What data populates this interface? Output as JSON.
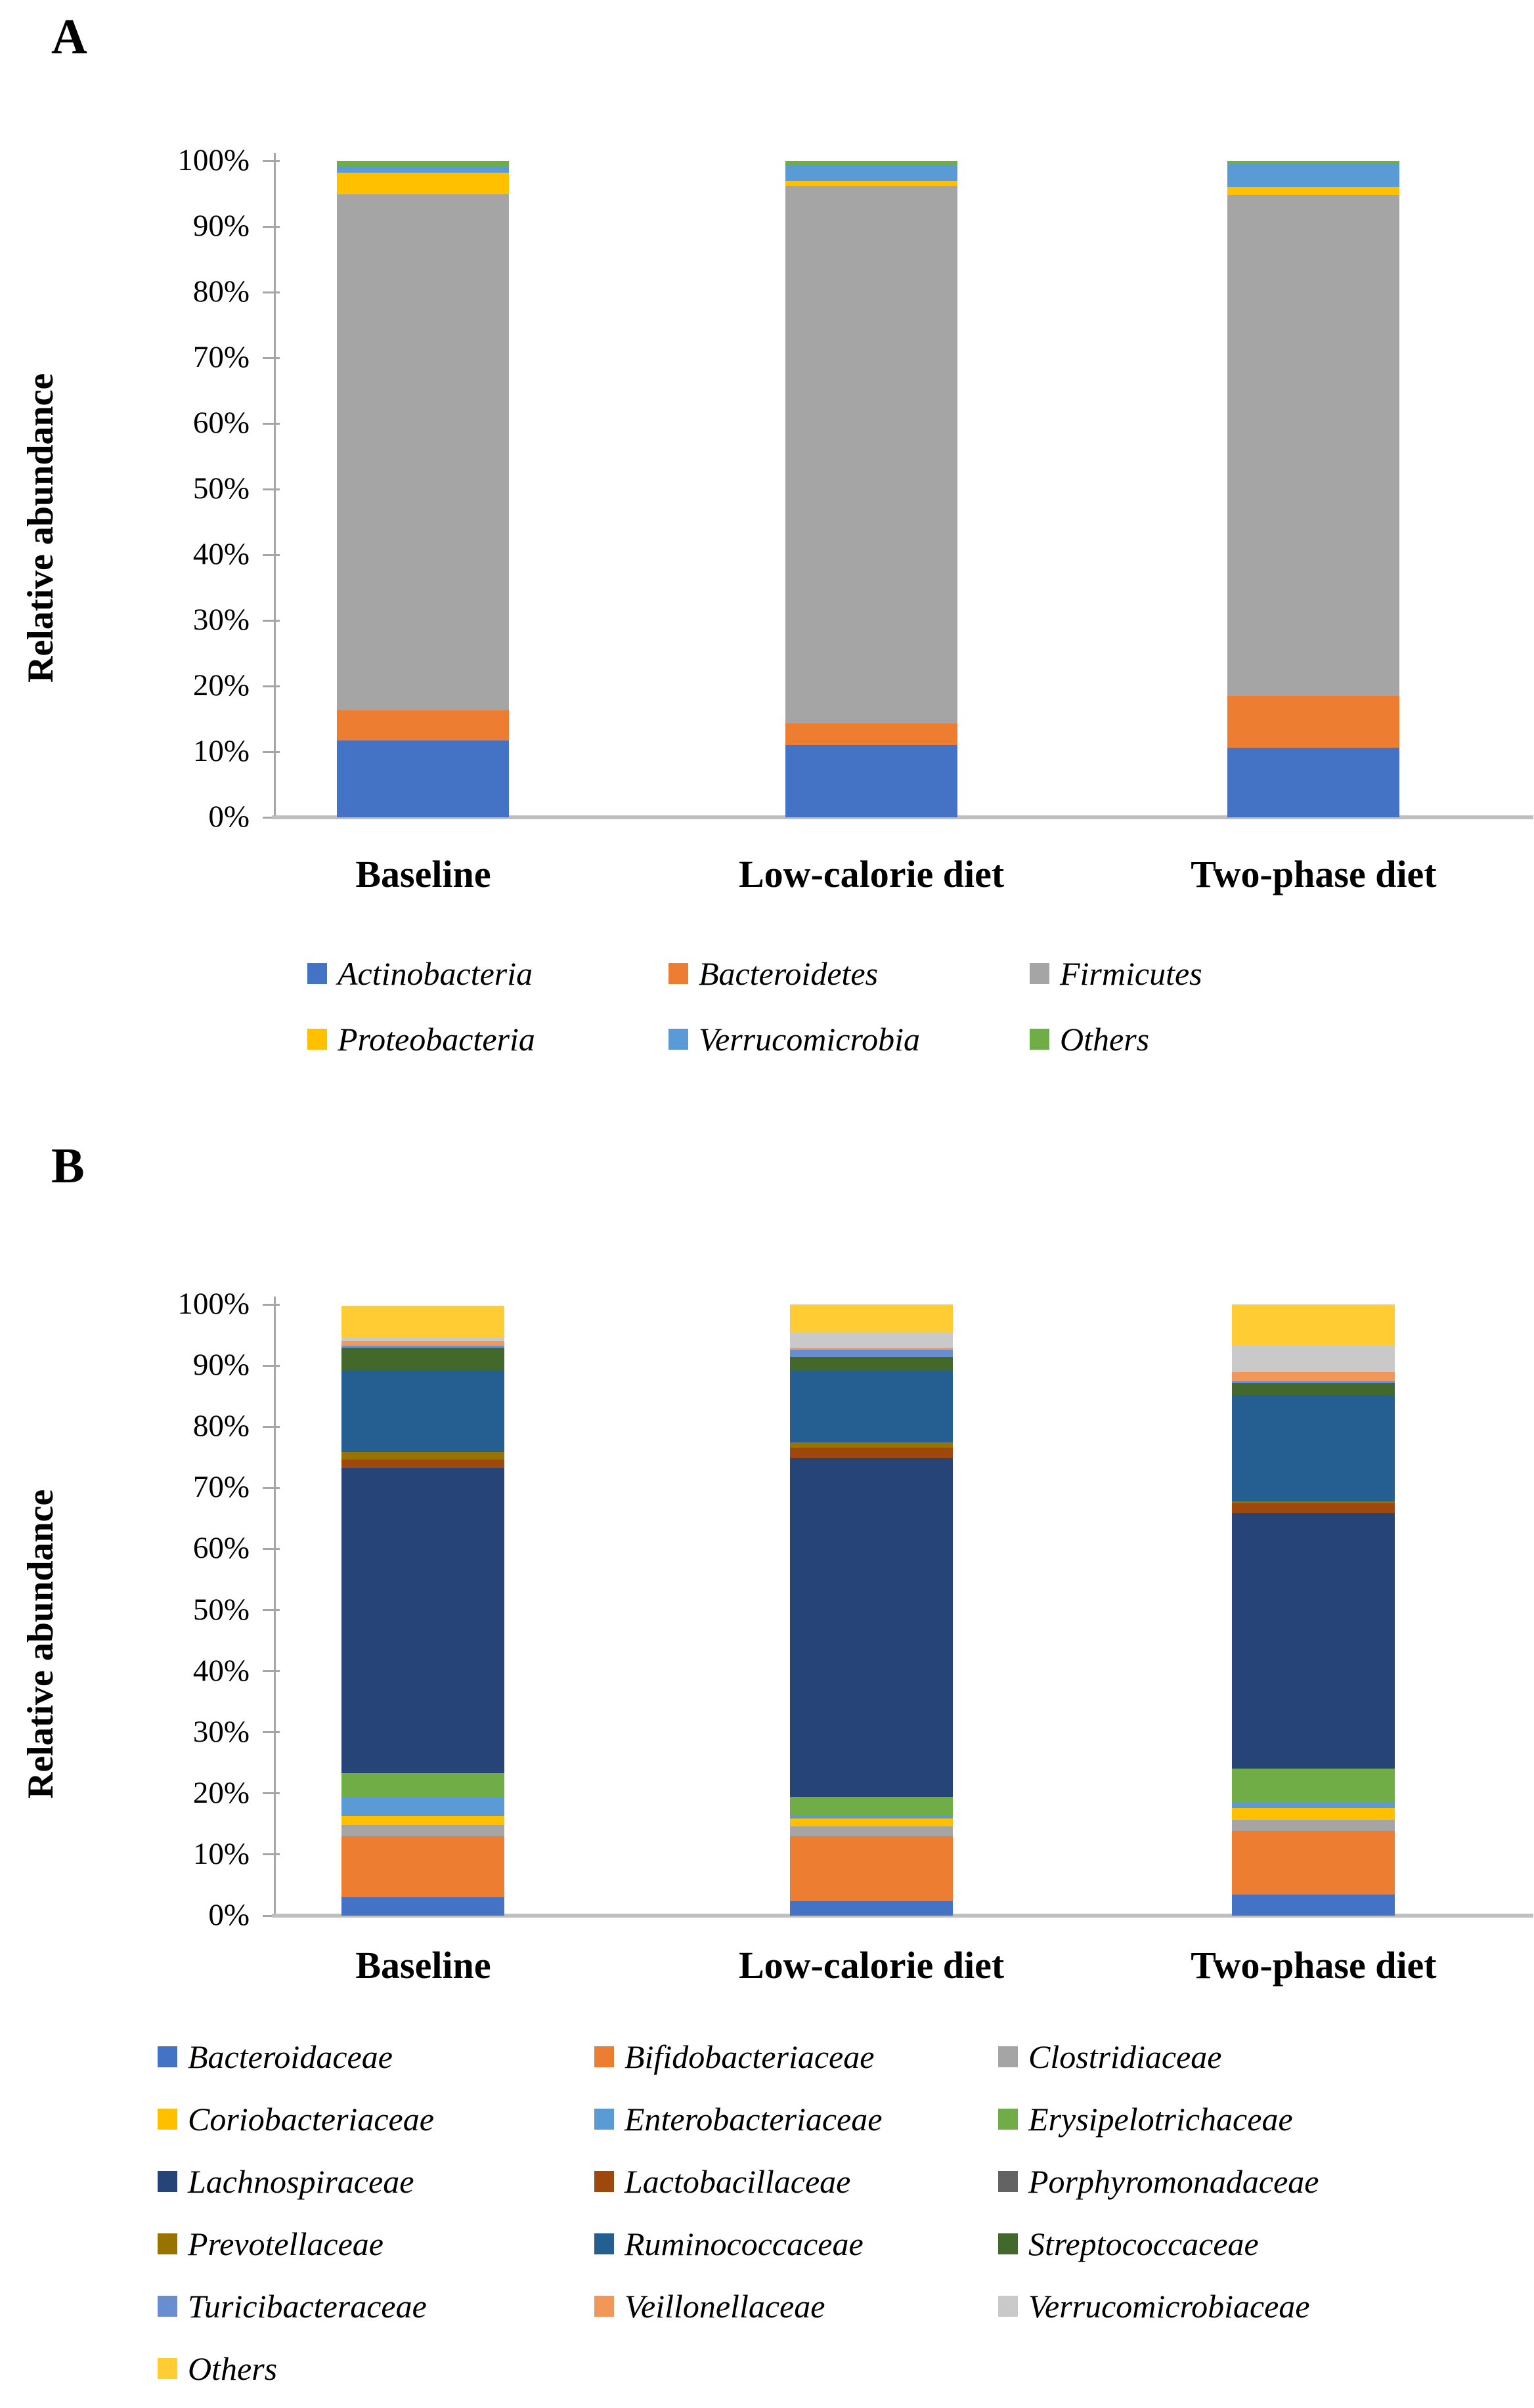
{
  "figure": {
    "y_axis_title": "Relative abundance",
    "x_categories": [
      "Baseline",
      "Low-calorie diet",
      "Two-phase diet"
    ]
  },
  "chart_data": [
    {
      "type": "bar",
      "stacked": true,
      "panel": "A",
      "ylabel": "Relative abundance",
      "ylim": [
        0,
        100
      ],
      "yticks": [
        "0%",
        "10%",
        "20%",
        "30%",
        "40%",
        "50%",
        "60%",
        "70%",
        "80%",
        "90%",
        "100%"
      ],
      "grid": false,
      "legend_position": "bottom",
      "categories": [
        "Baseline",
        "Low-calorie diet",
        "Two-phase diet"
      ],
      "series": [
        {
          "name": "Actinobacteria",
          "color": "#4472C4",
          "values": [
            11.7,
            11.0,
            10.6
          ]
        },
        {
          "name": "Bacteroidetes",
          "color": "#ED7D31",
          "values": [
            4.6,
            3.3,
            7.9
          ]
        },
        {
          "name": "Firmicutes",
          "color": "#A5A5A5",
          "values": [
            78.6,
            81.9,
            76.3
          ]
        },
        {
          "name": "Proteobacteria",
          "color": "#FFC000",
          "values": [
            3.3,
            0.7,
            1.2
          ]
        },
        {
          "name": "Verrucomicrobia",
          "color": "#5B9BD5",
          "values": [
            1.0,
            2.5,
            3.6
          ]
        },
        {
          "name": "Others",
          "color": "#70AD47",
          "values": [
            0.8,
            0.6,
            0.4
          ]
        }
      ]
    },
    {
      "type": "bar",
      "stacked": true,
      "panel": "B",
      "ylabel": "Relative abundance",
      "ylim": [
        0,
        100
      ],
      "yticks": [
        "0%",
        "10%",
        "20%",
        "30%",
        "40%",
        "50%",
        "60%",
        "70%",
        "80%",
        "90%",
        "100%"
      ],
      "grid": false,
      "legend_position": "bottom",
      "categories": [
        "Baseline",
        "Low-calorie diet",
        "Two-phase diet"
      ],
      "series": [
        {
          "name": "Bacteroidaceae",
          "color": "#4472C4",
          "values": [
            3.0,
            2.4,
            3.4
          ]
        },
        {
          "name": "Bifidobacteriaceae",
          "color": "#ED7D31",
          "values": [
            10.0,
            10.6,
            10.5
          ]
        },
        {
          "name": "Clostridiaceae",
          "color": "#A5A5A5",
          "values": [
            1.8,
            1.6,
            1.8
          ]
        },
        {
          "name": "Coriobacteriaceae",
          "color": "#FFC000",
          "values": [
            1.5,
            1.3,
            1.9
          ]
        },
        {
          "name": "Enterobacteriaceae",
          "color": "#5B9BD5",
          "values": [
            3.0,
            0.5,
            0.9
          ]
        },
        {
          "name": "Erysipelotrichaceae",
          "color": "#70AD47",
          "values": [
            4.0,
            3.0,
            5.6
          ]
        },
        {
          "name": "Lachnospiraceae",
          "color": "#264478",
          "values": [
            50.0,
            55.5,
            41.8
          ]
        },
        {
          "name": "Lactobacillaceae",
          "color": "#9E480E",
          "values": [
            1.2,
            1.6,
            1.6
          ]
        },
        {
          "name": "Porphyromonadaceae",
          "color": "#636363",
          "values": [
            0.2,
            0.1,
            0.1
          ]
        },
        {
          "name": "Prevotellaceae",
          "color": "#997300",
          "values": [
            1.1,
            0.8,
            0.2
          ]
        },
        {
          "name": "Ruminococcaceae",
          "color": "#255E91",
          "values": [
            13.5,
            11.8,
            17.4
          ]
        },
        {
          "name": "Streptococcaceae",
          "color": "#43682B",
          "values": [
            3.6,
            2.2,
            1.9
          ]
        },
        {
          "name": "Turicibacteraceae",
          "color": "#698ED0",
          "values": [
            0.3,
            1.2,
            0.3
          ]
        },
        {
          "name": "Veillonellaceae",
          "color": "#F1975A",
          "values": [
            0.8,
            0.3,
            1.6
          ]
        },
        {
          "name": "Verrucomicrobiaceae",
          "color": "#C9C9C9",
          "values": [
            0.5,
            2.6,
            4.2
          ]
        },
        {
          "name": "Others",
          "color": "#FFCD33",
          "values": [
            5.3,
            4.5,
            6.8
          ]
        }
      ]
    }
  ]
}
